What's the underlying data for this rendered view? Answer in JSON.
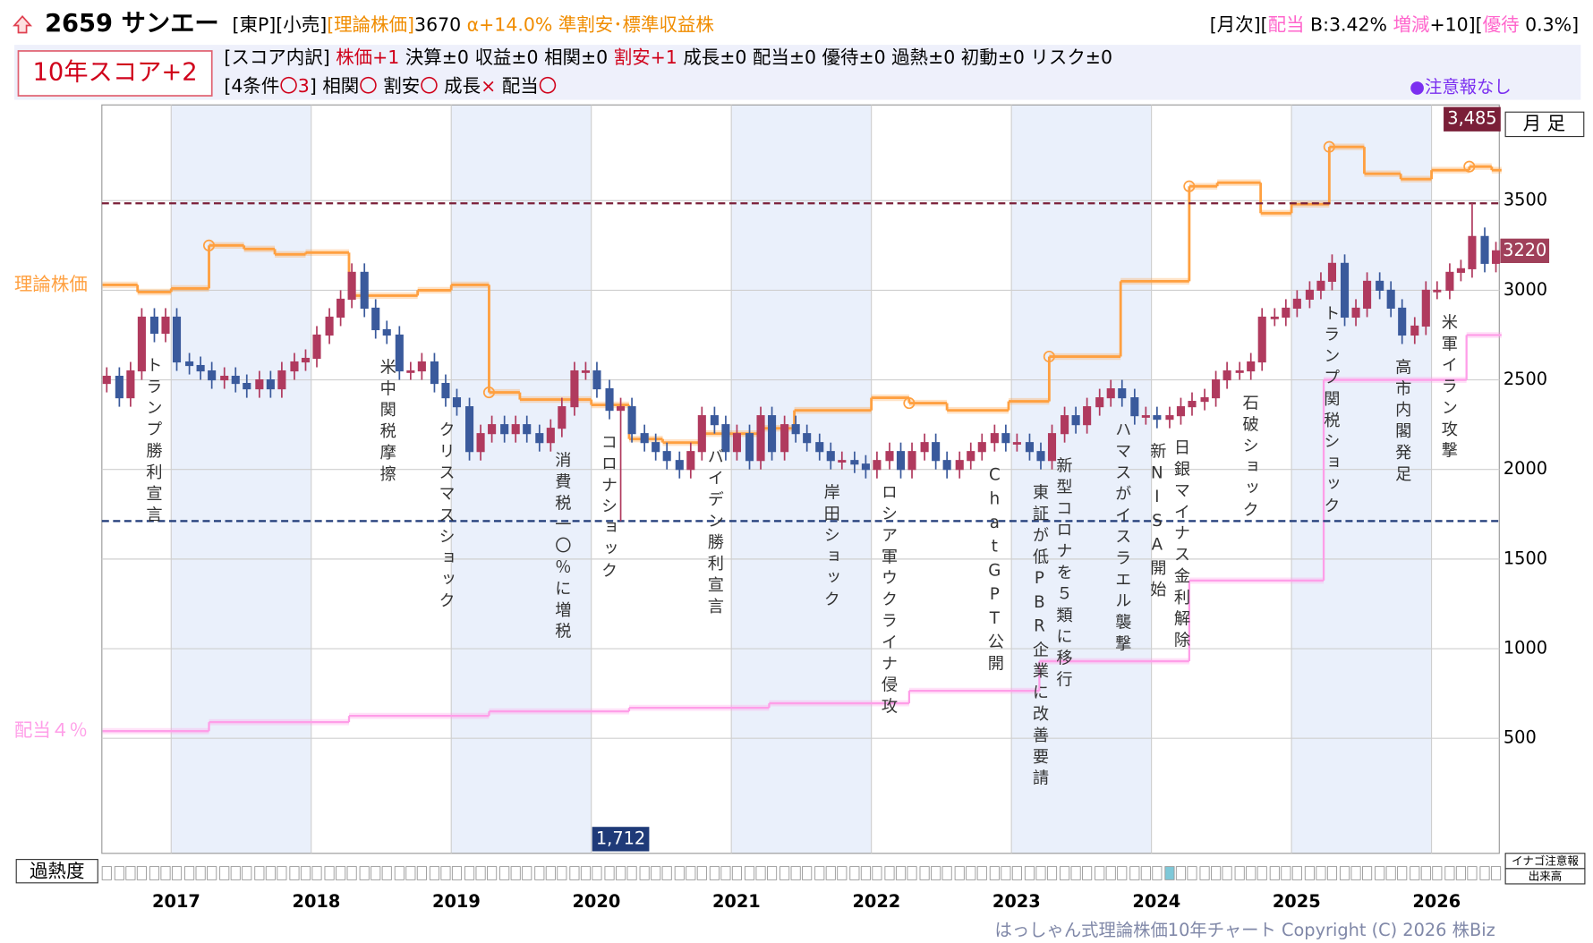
{
  "header": {
    "title": "2659 サンエー",
    "row1_left": [
      {
        "text": "[東P][小売]",
        "color": "#000000"
      },
      {
        "text": "[理論株価]",
        "color": "#f08c00"
      },
      {
        "text": "3670 ",
        "color": "#000000"
      },
      {
        "text": "α+14.0% ",
        "color": "#f08c00"
      },
      {
        "text": "準割安･標準収益株",
        "color": "#f08c00"
      }
    ],
    "row1_right": [
      {
        "text": "[月次][",
        "color": "#000000"
      },
      {
        "text": "配当",
        "color": "#ff66cc"
      },
      {
        "text": " B:3.42% ",
        "color": "#000000"
      },
      {
        "text": "増減",
        "color": "#ff66cc"
      },
      {
        "text": "+10][",
        "color": "#000000"
      },
      {
        "text": "優待",
        "color": "#ff66cc"
      },
      {
        "text": " 0.3%]",
        "color": "#000000"
      }
    ],
    "score": "10年スコア+2",
    "row2": [
      {
        "text": "[スコア内訳] ",
        "color": "#000000"
      },
      {
        "text": "株価+1",
        "color": "#d0021b"
      },
      {
        "text": " 決算±0 収益±0 相関±0 ",
        "color": "#000000"
      },
      {
        "text": "割安+1",
        "color": "#d0021b"
      },
      {
        "text": " 成長±0 配当±0 優待±0 過熱±0 初動±0 リスク±0",
        "color": "#000000"
      }
    ],
    "row3": [
      {
        "text": "[4条件",
        "color": "#000000"
      },
      {
        "text": "〇3",
        "color": "#d0021b"
      },
      {
        "text": "] 相関",
        "color": "#000000"
      },
      {
        "text": "〇",
        "color": "#d0021b"
      },
      {
        "text": " 割安",
        "color": "#000000"
      },
      {
        "text": "〇",
        "color": "#d0021b"
      },
      {
        "text": " 成長",
        "color": "#000000"
      },
      {
        "text": "×",
        "color": "#d0021b"
      },
      {
        "text": " 配当",
        "color": "#000000"
      },
      {
        "text": "〇",
        "color": "#d0021b"
      }
    ],
    "alert": "●注意報なし"
  },
  "chart_data": {
    "type": "candlestick",
    "x": [
      2016.54,
      2016.63,
      2016.71,
      2016.79,
      2016.88,
      2016.96,
      2017.04,
      2017.13,
      2017.21,
      2017.29,
      2017.38,
      2017.46,
      2017.54,
      2017.63,
      2017.71,
      2017.79,
      2017.88,
      2017.96,
      2018.04,
      2018.13,
      2018.21,
      2018.29,
      2018.38,
      2018.46,
      2018.54,
      2018.63,
      2018.71,
      2018.79,
      2018.88,
      2018.96,
      2019.04,
      2019.13,
      2019.21,
      2019.29,
      2019.38,
      2019.46,
      2019.54,
      2019.63,
      2019.71,
      2019.79,
      2019.88,
      2019.96,
      2020.04,
      2020.13,
      2020.21,
      2020.29,
      2020.38,
      2020.46,
      2020.54,
      2020.63,
      2020.71,
      2020.79,
      2020.88,
      2020.96,
      2021.04,
      2021.13,
      2021.21,
      2021.29,
      2021.38,
      2021.46,
      2021.54,
      2021.63,
      2021.71,
      2021.79,
      2021.88,
      2021.96,
      2022.04,
      2022.13,
      2022.21,
      2022.29,
      2022.38,
      2022.46,
      2022.54,
      2022.63,
      2022.71,
      2022.79,
      2022.88,
      2022.96,
      2023.04,
      2023.13,
      2023.21,
      2023.29,
      2023.38,
      2023.46,
      2023.54,
      2023.63,
      2023.71,
      2023.79,
      2023.88,
      2023.96,
      2024.04,
      2024.13,
      2024.21,
      2024.29,
      2024.38,
      2024.46,
      2024.54,
      2024.63,
      2024.71,
      2024.79,
      2024.88,
      2024.96,
      2025.04,
      2025.13,
      2025.21,
      2025.29,
      2025.38,
      2025.46,
      2025.54,
      2025.63,
      2025.71,
      2025.79,
      2025.88,
      2025.96,
      2026.04,
      2026.13,
      2026.21,
      2026.29,
      2026.38,
      2026.46
    ],
    "open": [
      2480,
      2520,
      2400,
      2550,
      2850,
      2760,
      2850,
      2600,
      2580,
      2550,
      2500,
      2520,
      2480,
      2450,
      2500,
      2450,
      2550,
      2600,
      2620,
      2750,
      2850,
      2950,
      3100,
      2900,
      2780,
      2750,
      2550,
      2550,
      2600,
      2480,
      2400,
      2350,
      2100,
      2200,
      2250,
      2200,
      2250,
      2200,
      2150,
      2230,
      2350,
      2550,
      2550,
      2450,
      2330,
      2350,
      2200,
      2150,
      2100,
      2050,
      2000,
      2100,
      2300,
      2250,
      2100,
      2200,
      2050,
      2300,
      2100,
      2250,
      2200,
      2150,
      2100,
      2050,
      2050,
      2030,
      2000,
      2050,
      2100,
      2000,
      2100,
      2150,
      2050,
      2000,
      2050,
      2100,
      2150,
      2200,
      2150,
      2150,
      2100,
      2050,
      2200,
      2300,
      2250,
      2350,
      2400,
      2450,
      2400,
      2300,
      2300,
      2280,
      2300,
      2350,
      2380,
      2400,
      2500,
      2550,
      2550,
      2600,
      2850,
      2850,
      2900,
      2950,
      3000,
      3050,
      3150,
      2850,
      2900,
      3050,
      3000,
      2900,
      2750,
      2800,
      3000,
      3000,
      3100,
      3120,
      3300,
      3150
    ],
    "high": [
      2570,
      2570,
      2600,
      2900,
      2900,
      2900,
      2900,
      2650,
      2630,
      2600,
      2570,
      2570,
      2530,
      2550,
      2550,
      2600,
      2650,
      2670,
      2800,
      2900,
      3000,
      3150,
      3150,
      2950,
      2830,
      2800,
      2600,
      2650,
      2650,
      2530,
      2450,
      2400,
      2250,
      2300,
      2300,
      2300,
      2300,
      2250,
      2280,
      2400,
      2600,
      2600,
      2600,
      2500,
      2400,
      2400,
      2250,
      2200,
      2150,
      2100,
      2150,
      2350,
      2350,
      2300,
      2250,
      2250,
      2350,
      2350,
      2300,
      2300,
      2250,
      2200,
      2150,
      2100,
      2100,
      2080,
      2100,
      2150,
      2150,
      2150,
      2200,
      2200,
      2100,
      2100,
      2150,
      2200,
      2250,
      2250,
      2200,
      2200,
      2150,
      2250,
      2350,
      2350,
      2400,
      2450,
      2500,
      2500,
      2450,
      2350,
      2350,
      2350,
      2400,
      2430,
      2450,
      2550,
      2600,
      2600,
      2650,
      2900,
      2900,
      2950,
      3000,
      3050,
      3100,
      3200,
      3200,
      2950,
      3100,
      3100,
      3050,
      2950,
      2850,
      3050,
      3050,
      3150,
      3170,
      3485,
      3350,
      3270
    ],
    "low": [
      2430,
      2350,
      2350,
      2500,
      2710,
      2710,
      2550,
      2530,
      2500,
      2450,
      2450,
      2430,
      2400,
      2400,
      2400,
      2400,
      2500,
      2550,
      2570,
      2700,
      2800,
      2900,
      2850,
      2730,
      2700,
      2500,
      2500,
      2500,
      2430,
      2350,
      2300,
      2050,
      2050,
      2150,
      2150,
      2150,
      2150,
      2100,
      2100,
      2180,
      2300,
      2500,
      2400,
      2280,
      1712,
      2150,
      2100,
      2050,
      2000,
      1950,
      1950,
      2050,
      2200,
      2050,
      2050,
      2000,
      2000,
      2050,
      2050,
      2150,
      2100,
      2050,
      2000,
      2000,
      1980,
      1950,
      1950,
      2000,
      1950,
      1950,
      2050,
      2000,
      1950,
      1950,
      2000,
      2050,
      2100,
      2100,
      2100,
      2050,
      2000,
      2000,
      2150,
      2200,
      2200,
      2300,
      2350,
      2350,
      2250,
      2250,
      2230,
      2230,
      2250,
      2300,
      2330,
      2350,
      2450,
      2500,
      2500,
      2550,
      2800,
      2800,
      2850,
      2900,
      2950,
      3000,
      2800,
      2800,
      2850,
      2950,
      2850,
      2700,
      2700,
      2750,
      2950,
      2950,
      3050,
      3070,
      3100,
      3100
    ],
    "close": [
      2520,
      2400,
      2550,
      2850,
      2760,
      2850,
      2600,
      2580,
      2550,
      2500,
      2520,
      2480,
      2450,
      2500,
      2450,
      2550,
      2600,
      2620,
      2750,
      2850,
      2950,
      3100,
      2900,
      2780,
      2750,
      2550,
      2550,
      2600,
      2480,
      2400,
      2350,
      2100,
      2200,
      2250,
      2200,
      2250,
      2200,
      2150,
      2230,
      2350,
      2550,
      2550,
      2450,
      2330,
      2350,
      2200,
      2150,
      2100,
      2050,
      2000,
      2100,
      2300,
      2250,
      2100,
      2200,
      2050,
      2300,
      2100,
      2250,
      2200,
      2150,
      2100,
      2050,
      2050,
      2030,
      2000,
      2050,
      2100,
      2000,
      2100,
      2150,
      2050,
      2000,
      2050,
      2100,
      2150,
      2200,
      2150,
      2150,
      2100,
      2050,
      2200,
      2300,
      2250,
      2350,
      2400,
      2450,
      2400,
      2300,
      2300,
      2280,
      2300,
      2350,
      2380,
      2400,
      2500,
      2550,
      2550,
      2600,
      2850,
      2850,
      2900,
      2950,
      3000,
      3050,
      3150,
      2850,
      2900,
      3050,
      3000,
      2900,
      2750,
      2800,
      3000,
      3000,
      3100,
      3120,
      3300,
      3150,
      3220
    ],
    "bull_color": "#b03a5e",
    "bear_color": "#3a5a9c",
    "xlim": [
      2016.505,
      2026.484
    ],
    "xticks": [
      2017,
      2018,
      2019,
      2020,
      2021,
      2022,
      2023,
      2024,
      2025,
      2026
    ],
    "ylim": [
      -142,
      4034
    ],
    "yticks": [
      500,
      1000,
      1500,
      2000,
      2500,
      3000,
      3500
    ],
    "grid": true,
    "theory": {
      "name": "理論株価",
      "color": "#ffa040",
      "x": [
        2016.51,
        2016.76,
        2017.0,
        2017.27,
        2017.52,
        2017.74,
        2017.96,
        2018.27,
        2018.76,
        2019.0,
        2019.27,
        2019.49,
        2020.0,
        2020.27,
        2020.51,
        2020.8,
        2021.2,
        2021.45,
        2022.0,
        2022.27,
        2022.54,
        2022.98,
        2023.27,
        2023.78,
        2024.27,
        2024.47,
        2024.78,
        2025.0,
        2025.27,
        2025.52,
        2025.78,
        2026.0,
        2026.27,
        2026.43
      ],
      "values": [
        3030,
        2990,
        3010,
        3250,
        3230,
        3200,
        3210,
        2970,
        3000,
        3030,
        2430,
        2390,
        2360,
        2170,
        2150,
        2200,
        2230,
        2330,
        2400,
        2370,
        2330,
        2380,
        2630,
        3050,
        3580,
        3600,
        3430,
        3480,
        3800,
        3650,
        3620,
        3670,
        3690,
        3670
      ],
      "markers": [
        3,
        10,
        19,
        22,
        24,
        28,
        32
      ]
    },
    "dividend": {
      "name": "配当４％",
      "color": "#ff9ee8",
      "x": [
        2016.51,
        2017.27,
        2018.27,
        2019.27,
        2020.27,
        2021.27,
        2022.27,
        2023.2,
        2024.27,
        2025.23,
        2026.25
      ],
      "values": [
        540,
        590,
        625,
        650,
        670,
        695,
        765,
        930,
        1380,
        2500,
        2750
      ]
    },
    "hlines": [
      {
        "value": 3485,
        "label": "3,485",
        "color": "#7a1f38"
      },
      {
        "value": 1712,
        "label": "1,712",
        "color": "#1f3a78"
      }
    ],
    "last_price": 3220,
    "period_label": "月 足",
    "annotations": [
      {
        "text": "トランプ勝利宣言",
        "x": 2016.87
      },
      {
        "text": "米中関税摩擦",
        "x": 2018.54
      },
      {
        "text": "クリスマスショック",
        "x": 2018.96
      },
      {
        "text": "消費税一〇％に増税",
        "x": 2019.79
      },
      {
        "text": "コロナショック",
        "x": 2020.12
      },
      {
        "text": "バイデン勝利宣言",
        "x": 2020.88
      },
      {
        "text": "岸田ショック",
        "x": 2021.71
      },
      {
        "text": "ロシア軍ウクライナ侵攻",
        "x": 2022.12
      },
      {
        "text": "ChatGPT公開",
        "x": 2022.88
      },
      {
        "text": "東証が低PBR企業に改善要請",
        "x": 2023.2
      },
      {
        "text": "新型コロナを５類に移行",
        "x": 2023.37
      },
      {
        "text": "ハマスがイスラエル襲撃",
        "x": 2023.79
      },
      {
        "text": "新NISA開始",
        "x": 2024.04
      },
      {
        "text": "日銀マイナス金利解除",
        "x": 2024.21
      },
      {
        "text": "石破ショック",
        "x": 2024.7
      },
      {
        "text": "トランプ関税ショック",
        "x": 2025.28
      },
      {
        "text": "高市内閣発足",
        "x": 2025.79
      },
      {
        "text": "米軍イラン攻撃",
        "x": 2026.12
      }
    ],
    "overheat": {
      "label": "過熱度",
      "highlight": [
        91
      ]
    },
    "side_labels": [
      "イナゴ注意報",
      "出来高"
    ],
    "copyright": "はっしゃん式理論株価10年チャート Copyright (C) 2026 株Biz"
  }
}
